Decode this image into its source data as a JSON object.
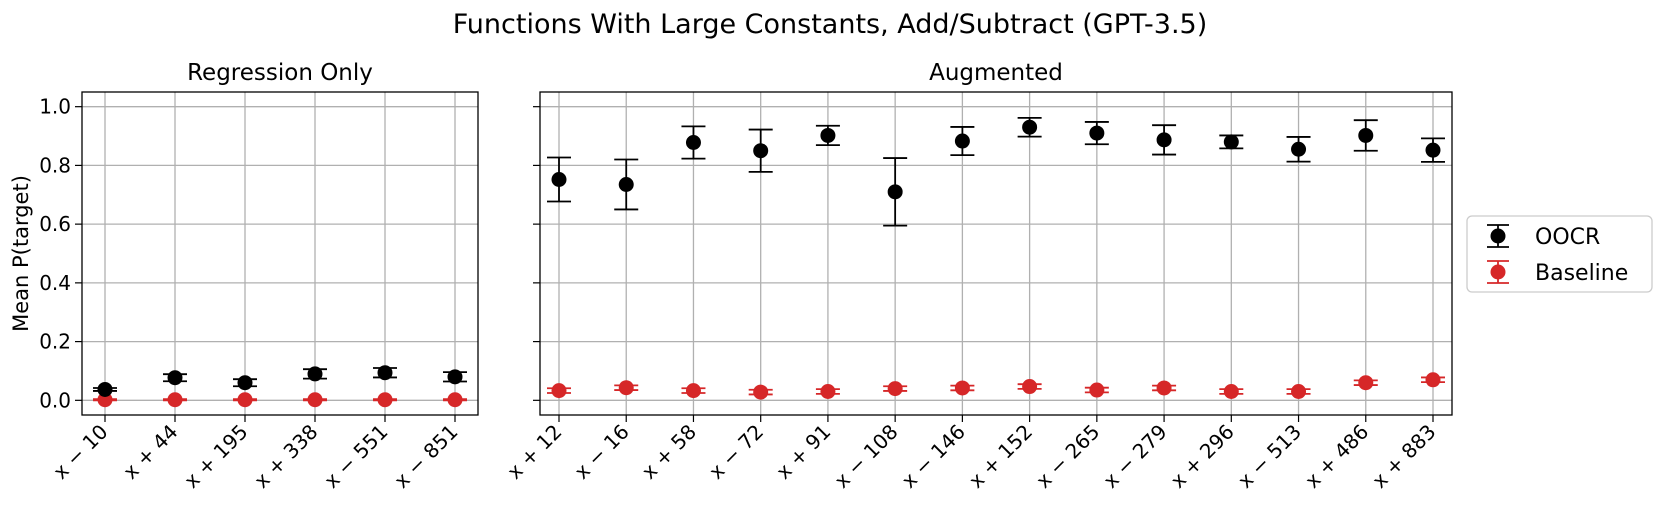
{
  "chart_data": {
    "title": "Functions With Large Constants, Add/Subtract (GPT-3.5)",
    "ylabel": "Mean P(target)",
    "ylim": [
      -0.05,
      1.05
    ],
    "yticks": [
      "0.0",
      "0.2",
      "0.4",
      "0.6",
      "0.8",
      "1.0"
    ],
    "grid": true,
    "legend": {
      "placement": "right",
      "entries": [
        "OOCR",
        "Baseline"
      ]
    },
    "colors": {
      "OOCR": "#000000",
      "Baseline": "#d62728"
    },
    "panels": [
      {
        "title": "Regression Only",
        "type": "scatter",
        "categories": [
          "x − 10",
          "x + 44",
          "x + 195",
          "x + 338",
          "x − 551",
          "x − 851"
        ],
        "series": [
          {
            "name": "OOCR",
            "values": [
              0.037,
              0.077,
              0.06,
              0.09,
              0.094,
              0.08
            ],
            "err": [
              0.005,
              0.012,
              0.012,
              0.016,
              0.016,
              0.016
            ]
          },
          {
            "name": "Baseline",
            "values": [
              0.002,
              0.002,
              0.002,
              0.002,
              0.002,
              0.002
            ],
            "err": [
              0.002,
              0.002,
              0.002,
              0.002,
              0.002,
              0.002
            ]
          }
        ]
      },
      {
        "title": "Augmented",
        "type": "scatter",
        "categories": [
          "x + 12",
          "x − 16",
          "x + 58",
          "x − 72",
          "x + 91",
          "x − 108",
          "x − 146",
          "x + 152",
          "x − 265",
          "x − 279",
          "x + 296",
          "x − 513",
          "x + 486",
          "x + 883"
        ],
        "series": [
          {
            "name": "OOCR",
            "values": [
              0.752,
              0.735,
              0.878,
              0.85,
              0.902,
              0.71,
              0.883,
              0.93,
              0.91,
              0.887,
              0.88,
              0.855,
              0.902,
              0.852
            ],
            "err": [
              0.075,
              0.085,
              0.055,
              0.072,
              0.033,
              0.115,
              0.048,
              0.032,
              0.038,
              0.05,
              0.022,
              0.042,
              0.052,
              0.04
            ]
          },
          {
            "name": "Baseline",
            "values": [
              0.033,
              0.043,
              0.033,
              0.028,
              0.03,
              0.04,
              0.042,
              0.047,
              0.035,
              0.042,
              0.03,
              0.03,
              0.06,
              0.07
            ],
            "err": [
              0.008,
              0.008,
              0.008,
              0.008,
              0.008,
              0.008,
              0.008,
              0.008,
              0.008,
              0.008,
              0.008,
              0.008,
              0.008,
              0.008
            ]
          }
        ]
      }
    ]
  }
}
